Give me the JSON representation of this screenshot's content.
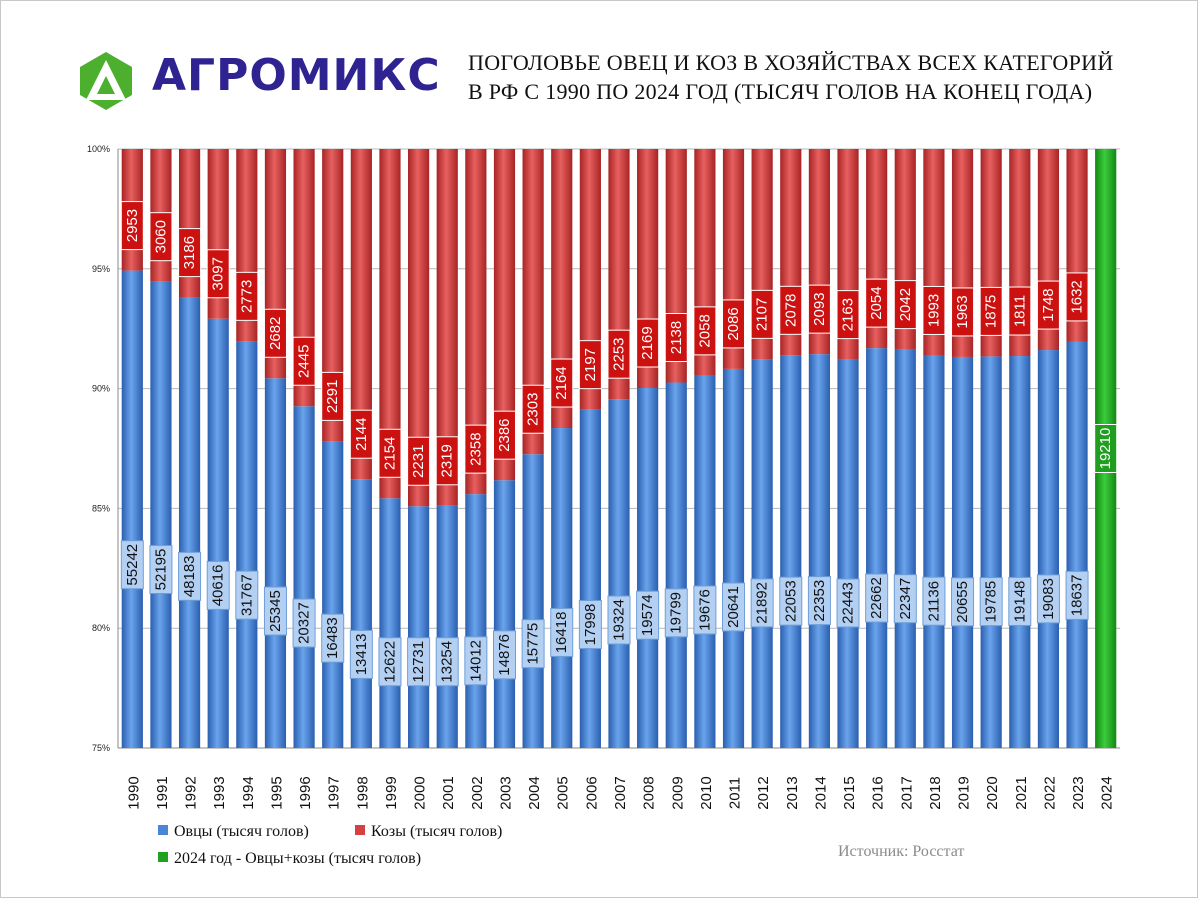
{
  "brand": {
    "name": "АГРОМИКС",
    "icon": "hexagon-triangle-logo-icon",
    "color": "#2e2390",
    "icon_color": "#4caf2d"
  },
  "title": {
    "line1": "ПОГОЛОВЬЕ ОВЕЦ И КОЗ В ХОЗЯЙСТВАХ ВСЕХ КАТЕГОРИЙ",
    "line2": "В РФ С 1990 ПО 2024 ГОД (ТЫСЯЧ ГОЛОВ НА КОНЕЦ ГОДА)"
  },
  "legend": {
    "sheep": "Овцы (тысяч голов)",
    "goats": "Козы (тысяч голов)",
    "total_2024": "2024 год  - Овцы+козы (тысяч голов)"
  },
  "source": "Источник: Росстат",
  "colors": {
    "sheep": "#4a86d8",
    "goats": "#d64040",
    "total": "#21a121"
  },
  "chart_data": {
    "type": "bar",
    "stacked": "percent",
    "categories": [
      "1990",
      "1991",
      "1992",
      "1993",
      "1994",
      "1995",
      "1996",
      "1997",
      "1998",
      "1999",
      "2000",
      "2001",
      "2002",
      "2003",
      "2004",
      "2005",
      "2006",
      "2007",
      "2008",
      "2009",
      "2010",
      "2011",
      "2012",
      "2013",
      "2014",
      "2015",
      "2016",
      "2017",
      "2018",
      "2019",
      "2020",
      "2021",
      "2022",
      "2023",
      "2024"
    ],
    "series": [
      {
        "name": "Овцы (тысяч голов)",
        "values": [
          55242,
          52195,
          48183,
          40616,
          31767,
          25345,
          20327,
          16483,
          13413,
          12622,
          12731,
          13254,
          14012,
          14876,
          15775,
          16418,
          17998,
          19324,
          19574,
          19799,
          19676,
          20641,
          21892,
          22053,
          22353,
          22443,
          22662,
          22347,
          21136,
          20655,
          19785,
          19148,
          19083,
          18637,
          null
        ]
      },
      {
        "name": "Козы (тысяч голов)",
        "values": [
          2953,
          3060,
          3186,
          3097,
          2773,
          2682,
          2445,
          2291,
          2144,
          2154,
          2231,
          2319,
          2358,
          2386,
          2303,
          2164,
          2197,
          2253,
          2169,
          2138,
          2058,
          2086,
          2107,
          2078,
          2093,
          2163,
          2054,
          2042,
          1993,
          1963,
          1875,
          1811,
          1748,
          1632,
          null
        ]
      },
      {
        "name": "2024 год  - Овцы+козы (тысяч голов)",
        "values": [
          null,
          null,
          null,
          null,
          null,
          null,
          null,
          null,
          null,
          null,
          null,
          null,
          null,
          null,
          null,
          null,
          null,
          null,
          null,
          null,
          null,
          null,
          null,
          null,
          null,
          null,
          null,
          null,
          null,
          null,
          null,
          null,
          null,
          null,
          19210
        ]
      }
    ],
    "ylim": [
      75,
      100
    ],
    "yticks": [
      "75%",
      "80%",
      "85%",
      "90%",
      "95%",
      "100%"
    ],
    "grid": true,
    "legend_position": "bottom-left"
  }
}
